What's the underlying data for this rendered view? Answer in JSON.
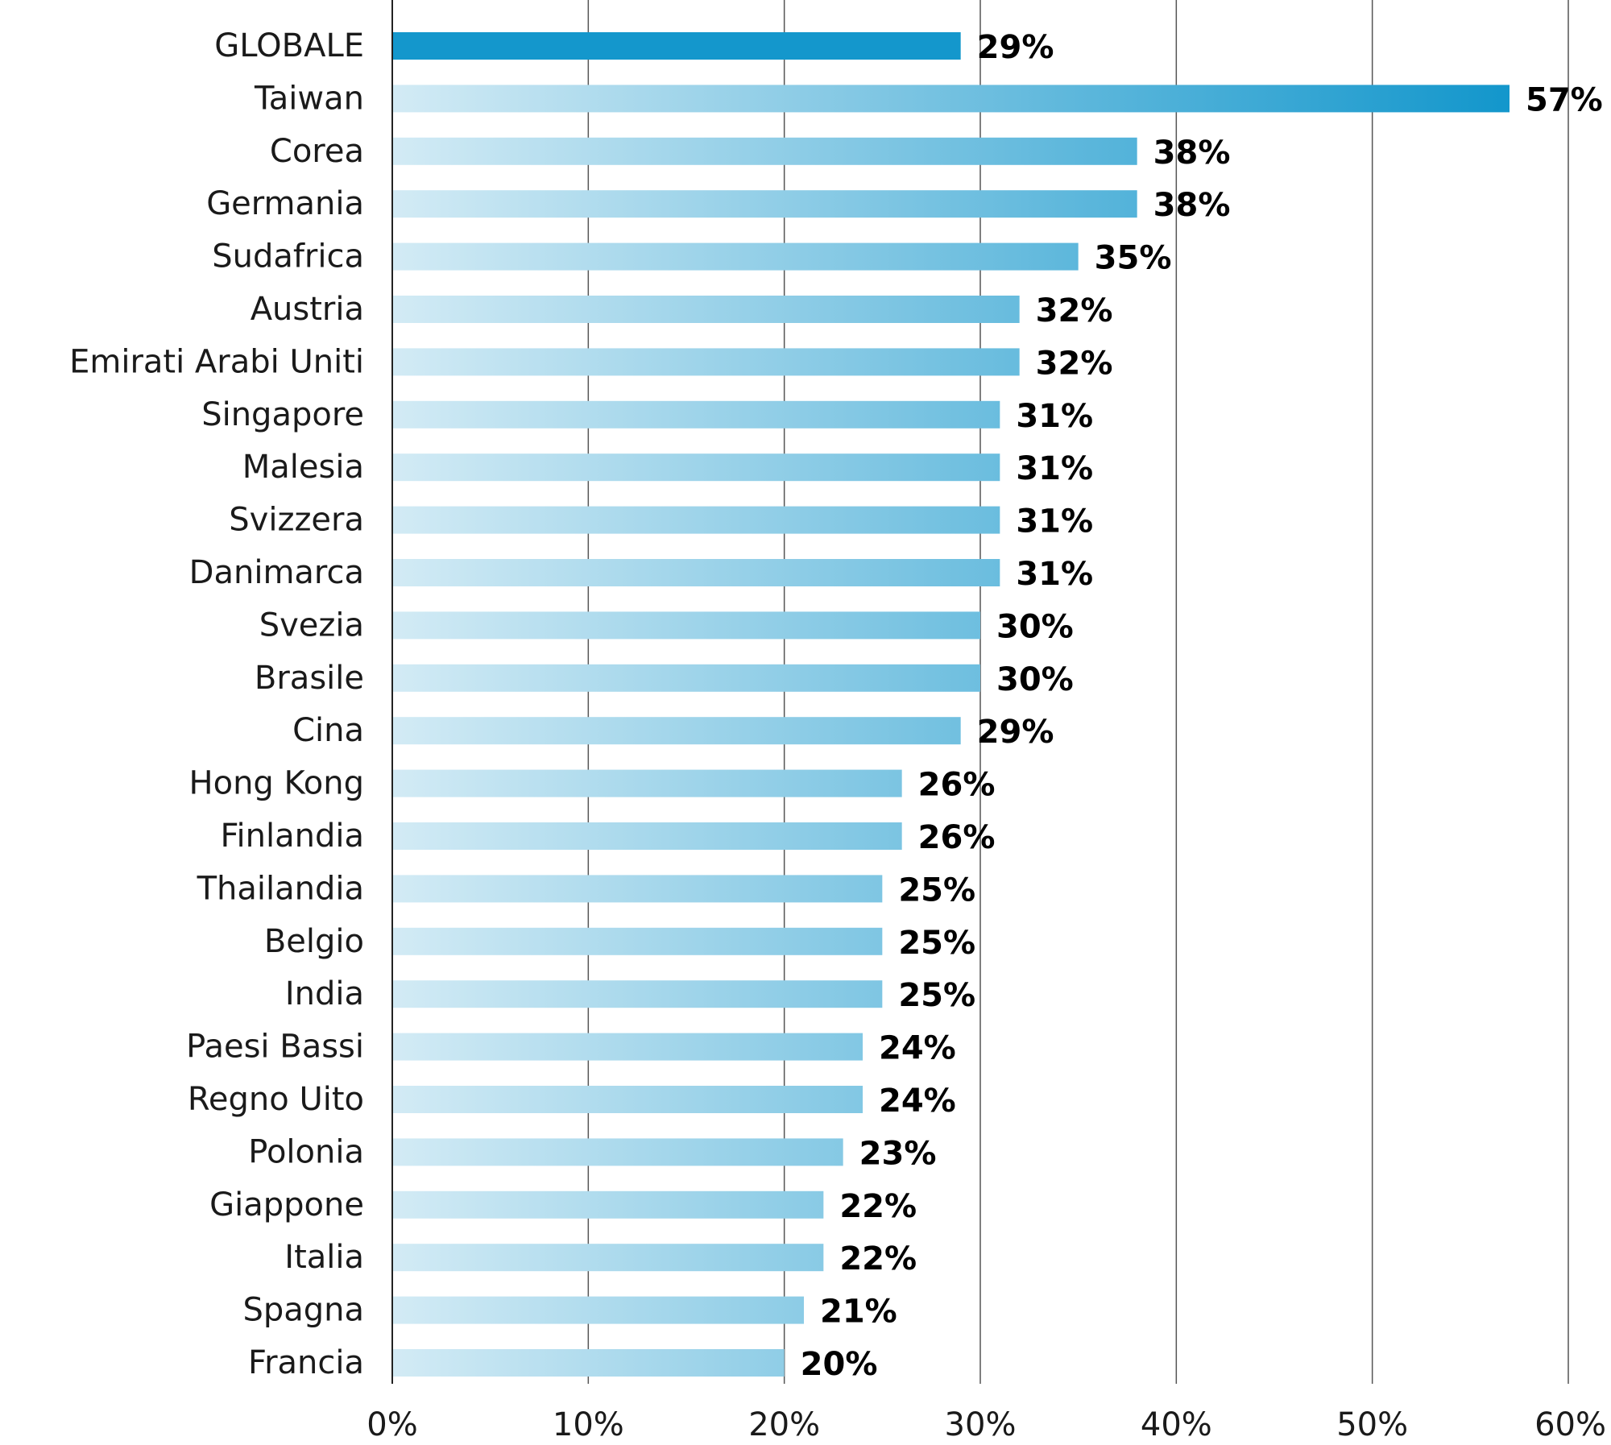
{
  "chart_data": {
    "type": "bar",
    "orientation": "horizontal",
    "categories": [
      "GLOBALE",
      "Taiwan",
      "Corea",
      "Germania",
      "Sudafrica",
      "Austria",
      "Emirati Arabi Uniti",
      "Singapore",
      "Malesia",
      "Svizzera",
      "Danimarca",
      "Svezia",
      "Brasile",
      "Cina",
      "Hong Kong",
      "Finlandia",
      "Thailandia",
      "Belgio",
      "India",
      "Paesi Bassi",
      "Regno Uito",
      "Polonia",
      "Giappone",
      "Italia",
      "Spagna",
      "Francia"
    ],
    "values": [
      29,
      57,
      38,
      38,
      35,
      32,
      32,
      31,
      31,
      31,
      31,
      30,
      30,
      29,
      26,
      26,
      25,
      25,
      25,
      24,
      24,
      23,
      22,
      22,
      21,
      20
    ],
    "value_labels": [
      "29%",
      "57%",
      "38%",
      "38%",
      "35%",
      "32%",
      "32%",
      "31%",
      "31%",
      "31%",
      "31%",
      "30%",
      "30%",
      "29%",
      "26%",
      "26%",
      "25%",
      "25%",
      "25%",
      "24%",
      "24%",
      "23%",
      "22%",
      "22%",
      "21%",
      "20%"
    ],
    "xlim": [
      0,
      60
    ],
    "x_ticks": [
      0,
      10,
      20,
      30,
      40,
      50,
      60
    ],
    "x_tick_labels": [
      "0%",
      "10%",
      "20%",
      "30%",
      "40%",
      "50%",
      "60%"
    ],
    "grid": "vertical",
    "legend": "none",
    "colors": {
      "highlight": "#1497cc",
      "gradient_start": "#d3ebf5",
      "gradient_end": "#1497cc",
      "grid": "#555555",
      "axis": "#222222"
    }
  }
}
